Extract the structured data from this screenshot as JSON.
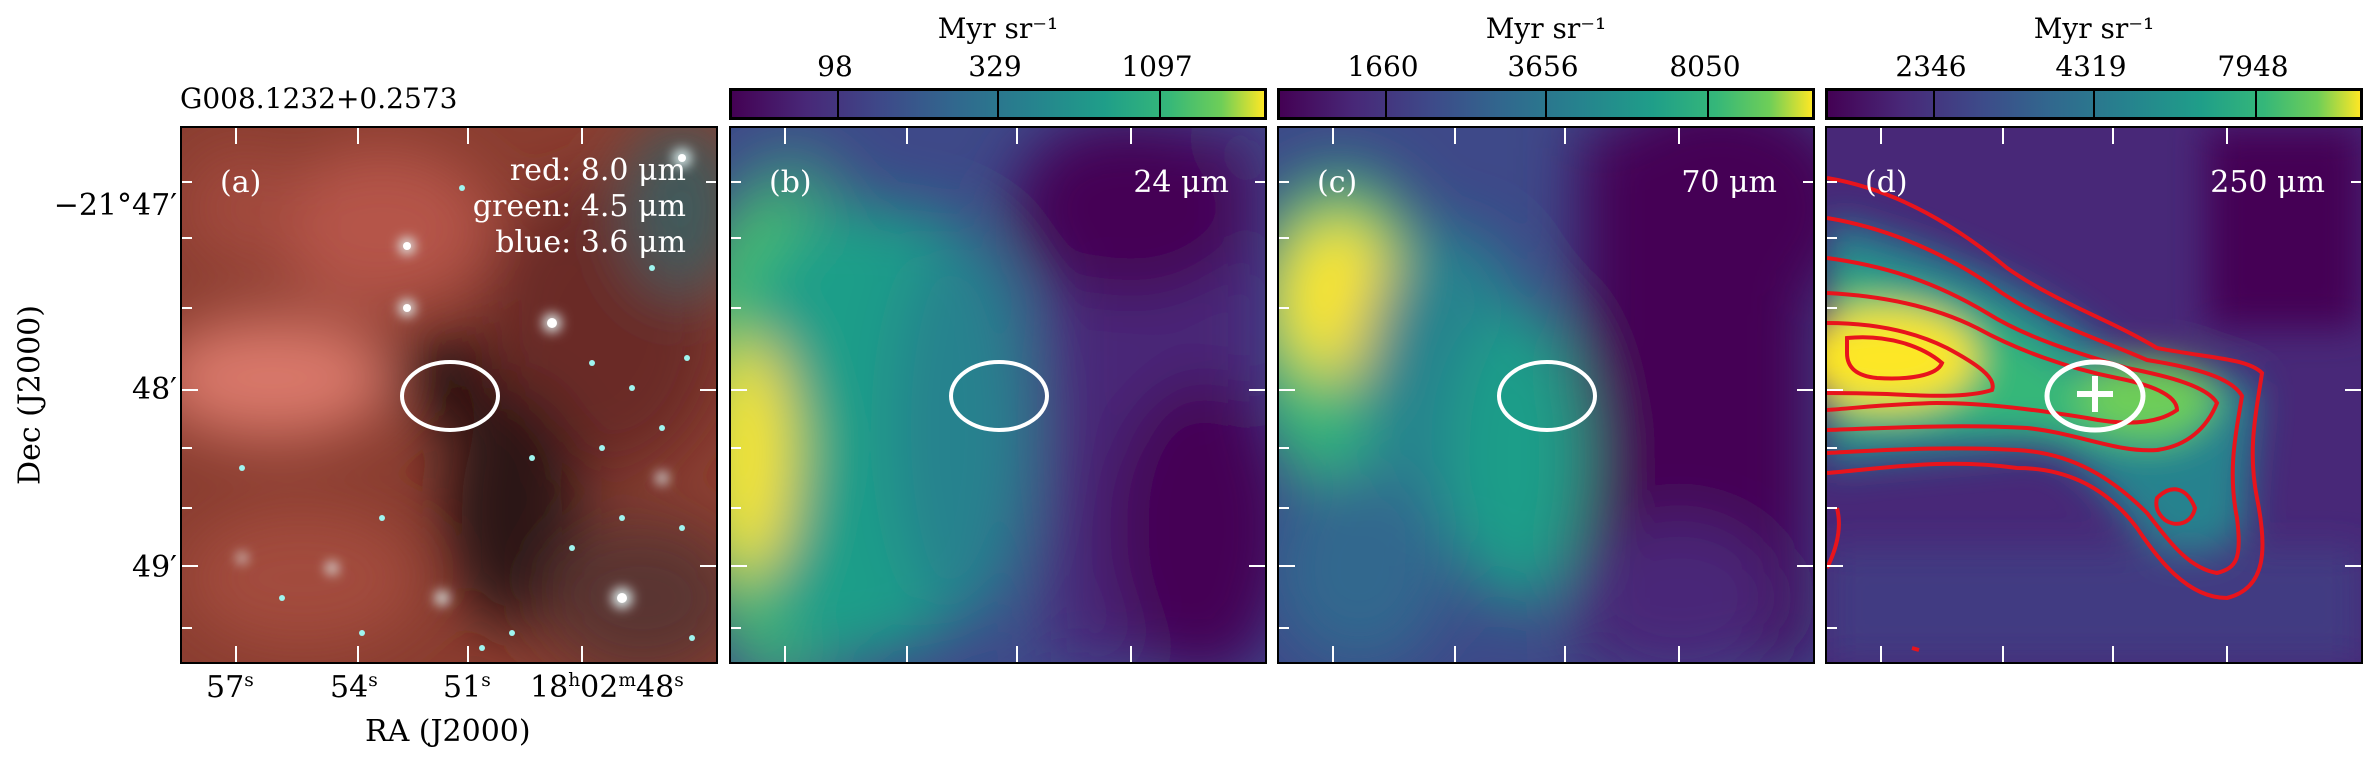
{
  "source_name": "G008.1232+0.2573",
  "axes": {
    "xlabel": "RA (J2000)",
    "ylabel": "Dec (J2000)",
    "dec_ticks": [
      "−21°47′",
      "48′",
      "49′"
    ],
    "ra_ticks": [
      {
        "main": "57",
        "sup": "s"
      },
      {
        "main": "54",
        "sup": "s"
      },
      {
        "main": "51",
        "sup": "s"
      },
      {
        "main": "18",
        "sup": "h",
        "main2": "02",
        "sup2": "m",
        "main3": "48",
        "sup3": "s"
      }
    ]
  },
  "panels": [
    {
      "letter": "(a)",
      "legend": [
        "red: 8.0 μm",
        "green: 4.5 μm",
        "blue: 3.6 μm"
      ]
    },
    {
      "letter": "(b)",
      "band": "24 μm",
      "colorbar": {
        "unit": "Myr sr⁻¹",
        "ticks": [
          "98",
          "329",
          "1097"
        ]
      }
    },
    {
      "letter": "(c)",
      "band": "70 μm",
      "colorbar": {
        "unit": "Myr sr⁻¹",
        "ticks": [
          "1660",
          "3656",
          "8050"
        ]
      }
    },
    {
      "letter": "(d)",
      "band": "250 μm",
      "colorbar": {
        "unit": "Myr sr⁻¹",
        "ticks": [
          "2346",
          "4319",
          "7948"
        ]
      }
    }
  ],
  "colors": {
    "viridis_low": "#440154",
    "viridis_mid": "#21918c",
    "viridis_high": "#fde725",
    "contour": "#e8141c",
    "ellipse": "#ffffff"
  }
}
